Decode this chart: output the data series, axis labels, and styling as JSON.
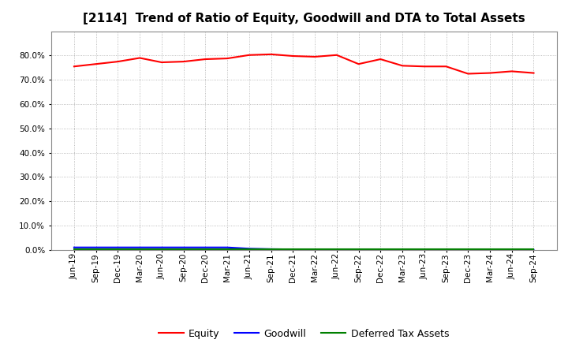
{
  "title": "[2114]  Trend of Ratio of Equity, Goodwill and DTA to Total Assets",
  "xlabel_labels": [
    "Jun-19",
    "Sep-19",
    "Dec-19",
    "Mar-20",
    "Jun-20",
    "Sep-20",
    "Dec-20",
    "Mar-21",
    "Jun-21",
    "Sep-21",
    "Dec-21",
    "Mar-22",
    "Jun-22",
    "Sep-22",
    "Dec-22",
    "Mar-23",
    "Jun-23",
    "Sep-23",
    "Dec-23",
    "Mar-24",
    "Jun-24",
    "Sep-24"
  ],
  "equity": [
    75.5,
    76.5,
    77.5,
    79.0,
    77.2,
    77.5,
    78.5,
    78.8,
    80.2,
    80.5,
    79.8,
    79.5,
    80.2,
    76.5,
    78.5,
    75.8,
    75.5,
    75.5,
    72.5,
    72.8,
    73.5,
    72.8
  ],
  "goodwill": [
    1.0,
    1.0,
    1.0,
    1.0,
    1.0,
    1.0,
    1.0,
    1.0,
    0.5,
    0.3,
    0.2,
    0.1,
    0.05,
    0.0,
    0.0,
    0.0,
    0.0,
    0.0,
    0.0,
    0.0,
    0.0,
    0.0
  ],
  "dta": [
    0.2,
    0.2,
    0.2,
    0.2,
    0.2,
    0.2,
    0.2,
    0.2,
    0.2,
    0.2,
    0.2,
    0.2,
    0.2,
    0.2,
    0.2,
    0.2,
    0.2,
    0.2,
    0.2,
    0.2,
    0.2,
    0.2
  ],
  "equity_color": "#FF0000",
  "goodwill_color": "#0000FF",
  "dta_color": "#008000",
  "ylim_min": 0,
  "ylim_max": 90,
  "yticks": [
    0,
    10,
    20,
    30,
    40,
    50,
    60,
    70,
    80
  ],
  "background_color": "#FFFFFF",
  "plot_bg_color": "#FFFFFF",
  "grid_color": "#AAAAAA",
  "legend_labels": [
    "Equity",
    "Goodwill",
    "Deferred Tax Assets"
  ],
  "title_fontsize": 11,
  "tick_fontsize": 7.5,
  "legend_fontsize": 9
}
